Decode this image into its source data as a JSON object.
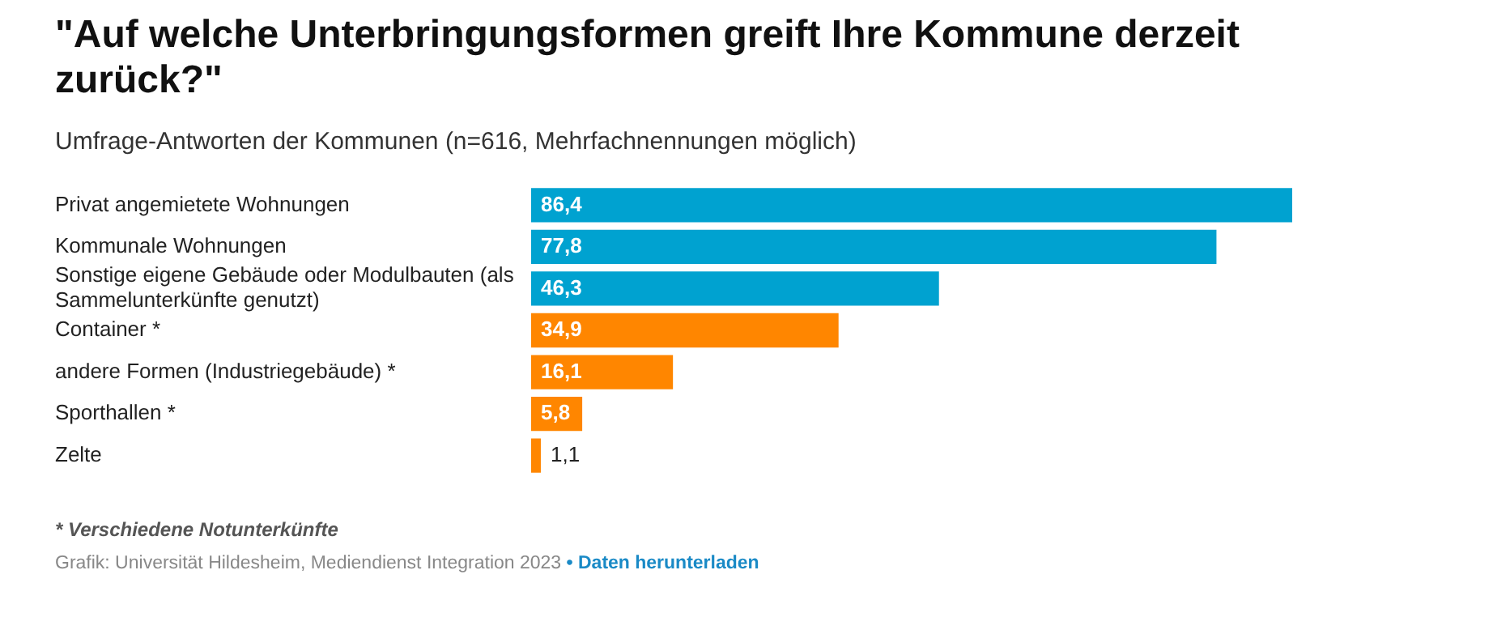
{
  "chart_data": {
    "type": "bar",
    "orientation": "horizontal",
    "title": "\"Auf welche Unterbringungsformen greift Ihre Kommune derzeit zurück?\"",
    "subtitle": "Umfrage-Antworten der Kommunen (n=616, Mehrfachnennungen möglich)",
    "categories": [
      "Privat angemietete Wohnungen",
      "Kommunale Wohnungen",
      "Sonstige eigene Gebäude oder Modulbauten (als Sammelunterkünfte genutzt)",
      "Container *",
      "andere Formen (Industriegebäude) *",
      "Sporthallen *",
      "Zelte"
    ],
    "values": [
      86.4,
      77.8,
      46.3,
      34.9,
      16.1,
      5.8,
      1.1
    ],
    "colors": [
      "#00a2d0",
      "#00a2d0",
      "#00a2d0",
      "#ff8600",
      "#ff8600",
      "#ff8600",
      "#ff8600"
    ],
    "value_labels": [
      "86,4",
      "77,8",
      "46,3",
      "34,9",
      "16,1",
      "5,8",
      "1,1"
    ],
    "legend": false,
    "annotations": [
      "* Verschiedene Notunterkünfte",
      "Grafik: Universität Hildesheim, Mediendienst Integration 2023",
      "• Daten herunterladen"
    ]
  }
}
